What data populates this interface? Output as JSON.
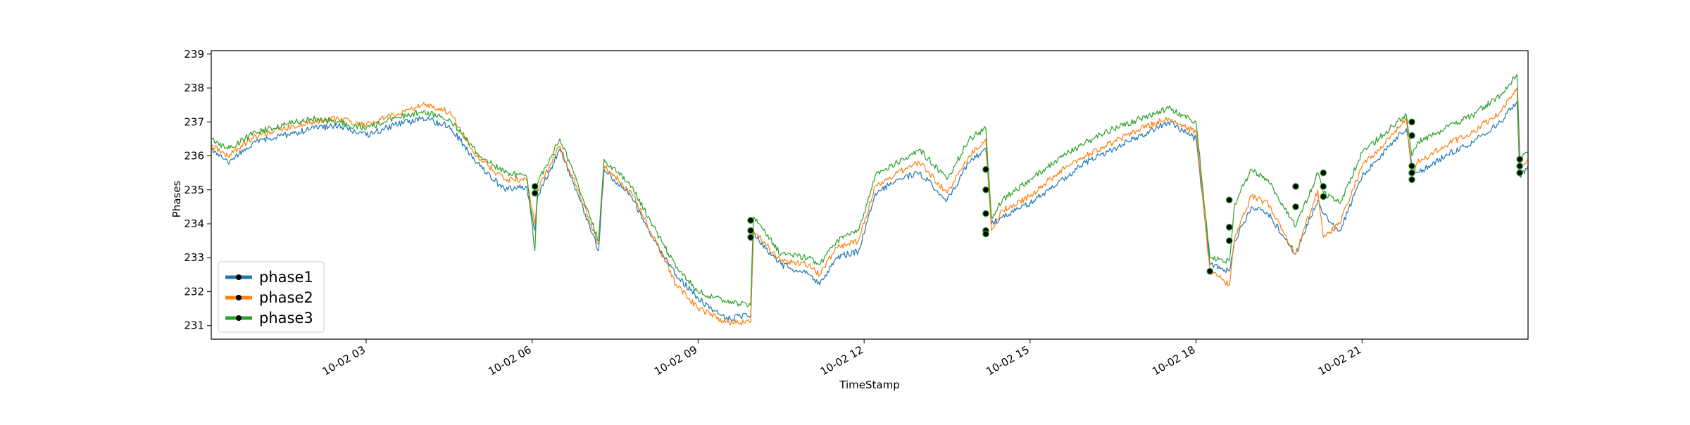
{
  "chart_data": {
    "type": "line",
    "title": "",
    "xlabel": "TimeStamp",
    "ylabel": "Phases",
    "xlim": [
      0.2,
      24.0
    ],
    "ylim": [
      230.6,
      239.1
    ],
    "x_unit": "hours since 10-02 00:00",
    "yticks": [
      231,
      232,
      233,
      234,
      235,
      236,
      237,
      238,
      239
    ],
    "xticks": [
      {
        "value": 3,
        "label": "10-02 03"
      },
      {
        "value": 6,
        "label": "10-02 06"
      },
      {
        "value": 9,
        "label": "10-02 09"
      },
      {
        "value": 12,
        "label": "10-02 12"
      },
      {
        "value": 15,
        "label": "10-02 15"
      },
      {
        "value": 18,
        "label": "10-02 18"
      },
      {
        "value": 21,
        "label": "10-02 21"
      }
    ],
    "legend_position": "lower-left",
    "grid": false,
    "x": [
      0.2,
      0.5,
      1.0,
      1.5,
      2.0,
      2.5,
      3.0,
      3.5,
      4.0,
      4.5,
      5.0,
      5.5,
      5.9,
      6.05,
      6.1,
      6.5,
      6.8,
      7.2,
      7.3,
      7.8,
      8.2,
      8.6,
      9.0,
      9.5,
      9.95,
      10.0,
      10.1,
      10.5,
      11.0,
      11.2,
      11.5,
      11.9,
      12.2,
      12.6,
      13.0,
      13.5,
      13.9,
      14.2,
      14.3,
      14.5,
      15.0,
      15.5,
      16.0,
      16.5,
      17.0,
      17.5,
      18.0,
      18.25,
      18.6,
      18.7,
      19.0,
      19.3,
      19.8,
      20.2,
      20.3,
      20.6,
      21.0,
      21.5,
      21.8,
      21.9,
      22.0,
      22.5,
      23.0,
      23.5,
      23.8,
      23.85,
      24.0
    ],
    "series": [
      {
        "name": "phase1",
        "color": "#1f77b4",
        "values": [
          236.2,
          235.8,
          236.4,
          236.6,
          236.8,
          236.9,
          236.6,
          236.9,
          237.1,
          236.9,
          235.8,
          235.0,
          235.1,
          233.8,
          234.8,
          236.2,
          235.0,
          233.2,
          235.6,
          234.8,
          233.5,
          232.5,
          231.8,
          231.2,
          231.3,
          233.7,
          233.5,
          232.8,
          232.5,
          232.2,
          233.0,
          233.2,
          234.9,
          235.3,
          235.5,
          234.7,
          235.8,
          236.2,
          234.0,
          234.2,
          234.6,
          235.2,
          235.8,
          236.2,
          236.6,
          237.0,
          236.5,
          232.8,
          232.6,
          233.5,
          234.5,
          234.3,
          233.1,
          234.7,
          234.3,
          233.8,
          235.4,
          236.3,
          236.8,
          235.7,
          235.5,
          236.0,
          236.4,
          237.0,
          237.6,
          235.4,
          235.7
        ]
      },
      {
        "name": "phase2",
        "color": "#ff7f0e",
        "values": [
          236.3,
          236.0,
          236.6,
          236.8,
          237.0,
          237.1,
          236.9,
          237.2,
          237.5,
          237.3,
          236.0,
          235.3,
          235.3,
          234.0,
          235.0,
          236.3,
          235.1,
          233.4,
          235.7,
          234.9,
          233.6,
          232.2,
          231.5,
          231.1,
          231.1,
          233.8,
          233.6,
          232.9,
          232.8,
          232.5,
          233.3,
          233.5,
          235.1,
          235.5,
          235.8,
          234.9,
          236.0,
          236.5,
          233.8,
          234.4,
          234.8,
          235.5,
          236.0,
          236.4,
          236.8,
          237.1,
          236.7,
          232.6,
          232.2,
          233.6,
          234.8,
          234.6,
          233.1,
          235.0,
          233.6,
          234.0,
          235.7,
          236.5,
          237.1,
          235.4,
          235.8,
          236.3,
          236.7,
          237.3,
          238.0,
          235.7,
          235.9
        ]
      },
      {
        "name": "phase3",
        "color": "#2ca02c",
        "values": [
          236.5,
          236.2,
          236.7,
          236.9,
          237.1,
          237.0,
          236.8,
          237.1,
          237.3,
          237.1,
          236.1,
          235.5,
          235.4,
          233.2,
          235.2,
          236.5,
          235.3,
          233.5,
          235.9,
          235.1,
          233.9,
          232.7,
          232.0,
          231.7,
          231.6,
          234.2,
          234.0,
          233.1,
          233.0,
          232.8,
          233.5,
          233.8,
          235.4,
          235.8,
          236.2,
          235.3,
          236.5,
          236.8,
          234.2,
          234.7,
          235.3,
          235.9,
          236.4,
          236.8,
          237.1,
          237.4,
          237.0,
          233.0,
          232.9,
          234.6,
          235.6,
          235.3,
          233.9,
          235.5,
          234.9,
          234.6,
          236.1,
          236.8,
          237.2,
          236.0,
          236.4,
          236.8,
          237.2,
          237.8,
          238.4,
          236.0,
          236.1
        ]
      }
    ],
    "markers": [
      {
        "x": 6.05,
        "y": 235.1
      },
      {
        "x": 6.05,
        "y": 234.9
      },
      {
        "x": 9.95,
        "y": 234.1
      },
      {
        "x": 9.95,
        "y": 233.8
      },
      {
        "x": 9.95,
        "y": 233.6
      },
      {
        "x": 14.2,
        "y": 235.6
      },
      {
        "x": 14.2,
        "y": 235.0
      },
      {
        "x": 14.2,
        "y": 234.3
      },
      {
        "x": 14.2,
        "y": 233.8
      },
      {
        "x": 14.2,
        "y": 233.7
      },
      {
        "x": 18.25,
        "y": 232.6
      },
      {
        "x": 18.6,
        "y": 234.7
      },
      {
        "x": 18.6,
        "y": 233.9
      },
      {
        "x": 18.6,
        "y": 233.5
      },
      {
        "x": 19.8,
        "y": 235.1
      },
      {
        "x": 19.8,
        "y": 234.5
      },
      {
        "x": 20.3,
        "y": 235.5
      },
      {
        "x": 20.3,
        "y": 235.1
      },
      {
        "x": 20.3,
        "y": 234.8
      },
      {
        "x": 21.9,
        "y": 237.0
      },
      {
        "x": 21.9,
        "y": 236.6
      },
      {
        "x": 21.9,
        "y": 235.7
      },
      {
        "x": 21.9,
        "y": 235.5
      },
      {
        "x": 21.9,
        "y": 235.3
      },
      {
        "x": 23.85,
        "y": 235.9
      },
      {
        "x": 23.85,
        "y": 235.7
      },
      {
        "x": 23.85,
        "y": 235.5
      }
    ]
  }
}
